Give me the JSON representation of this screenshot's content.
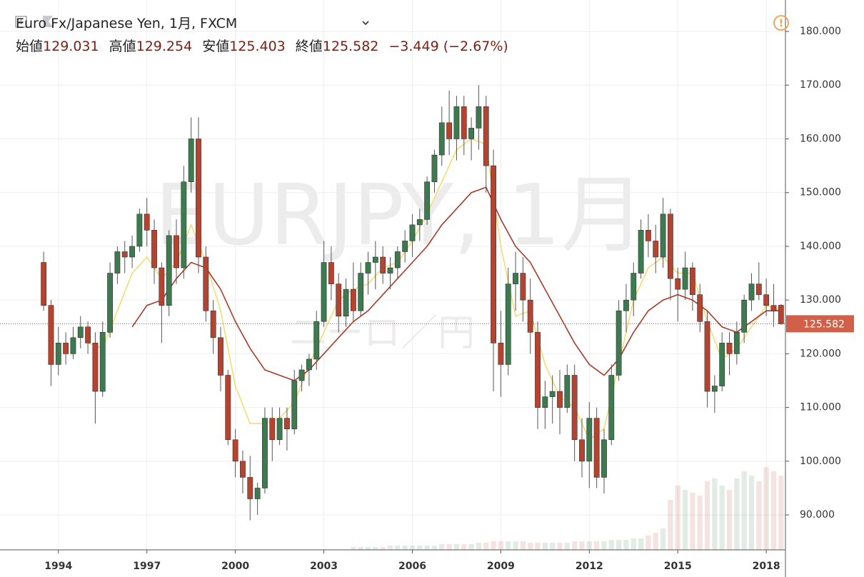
{
  "chart_data": {
    "type": "candlestick",
    "title": "Euro Fx/Japanese Yen, 1月, FXCM",
    "watermark": "EURJPY, 1月",
    "watermark_sub": "ユーロ／円",
    "ohlc_labels": [
      "始値",
      "高値",
      "安値",
      "終値"
    ],
    "change": "−3.449 (−2.67%)",
    "up_color": "#3d7a4f",
    "down_color": "#b5432f",
    "x": [
      1993.5,
      1993.75,
      1994,
      1994.25,
      1994.5,
      1994.75,
      1995,
      1995.25,
      1995.5,
      1995.75,
      1996,
      1996.25,
      1996.5,
      1996.75,
      1997,
      1997.25,
      1997.5,
      1997.75,
      1998,
      1998.25,
      1998.5,
      1998.75,
      1999,
      1999.25,
      1999.5,
      1999.75,
      2000,
      2000.25,
      2000.5,
      2000.75,
      2001,
      2001.25,
      2001.5,
      2001.75,
      2002,
      2002.25,
      2002.5,
      2002.75,
      2003,
      2003.25,
      2003.5,
      2003.75,
      2004,
      2004.25,
      2004.5,
      2004.75,
      2005,
      2005.25,
      2005.5,
      2005.75,
      2006,
      2006.25,
      2006.5,
      2006.75,
      2007,
      2007.25,
      2007.5,
      2007.75,
      2008,
      2008.25,
      2008.5,
      2008.75,
      2009,
      2009.25,
      2009.5,
      2009.75,
      2010,
      2010.25,
      2010.5,
      2010.75,
      2011,
      2011.25,
      2011.5,
      2011.75,
      2012,
      2012.25,
      2012.5,
      2012.75,
      2013,
      2013.25,
      2013.5,
      2013.75,
      2014,
      2014.25,
      2014.5,
      2014.75,
      2015,
      2015.25,
      2015.5,
      2015.75,
      2016,
      2016.25,
      2016.5,
      2016.75,
      2017,
      2017.25,
      2017.5,
      2017.75,
      2018,
      2018.25,
      2018.5
    ],
    "open": [
      137,
      129,
      118,
      122,
      120,
      123,
      125,
      122,
      113,
      124,
      135,
      139,
      138,
      140,
      146,
      143,
      136,
      129,
      142,
      136,
      152,
      160,
      138,
      128,
      123,
      116,
      104,
      100,
      97,
      93,
      95,
      108,
      104,
      108,
      106,
      115,
      117,
      119,
      126,
      137,
      133,
      127,
      132,
      128,
      135,
      137,
      138,
      135,
      136,
      139,
      141,
      144,
      145,
      152,
      157,
      163,
      160,
      166,
      160,
      162,
      166,
      155,
      122,
      118,
      133,
      135,
      130,
      124,
      110,
      112,
      113,
      110,
      116,
      104,
      100,
      108,
      97,
      104,
      116,
      128,
      130,
      135,
      143,
      141,
      138,
      146,
      134,
      132,
      136,
      131,
      126,
      113,
      114,
      122,
      120,
      124,
      130,
      133,
      131,
      129,
      129.031
    ],
    "high": [
      139,
      130,
      125,
      124,
      125,
      127,
      126,
      124,
      126,
      137,
      140,
      141,
      142,
      147,
      149,
      145,
      137,
      143,
      145,
      155,
      164,
      164,
      140,
      130,
      125,
      117,
      106,
      102,
      101,
      96,
      110,
      110,
      110,
      110,
      117,
      118,
      120,
      128,
      141,
      140,
      135,
      134,
      137,
      137,
      139,
      141,
      140,
      138,
      140,
      143,
      146,
      147,
      153,
      158,
      166,
      169,
      168,
      168,
      164,
      170,
      168,
      158,
      128,
      136,
      139,
      138,
      134,
      126,
      115,
      116,
      117,
      118,
      118,
      108,
      111,
      110,
      106,
      118,
      130,
      133,
      137,
      145,
      146,
      144,
      149,
      147,
      136,
      139,
      137,
      133,
      128,
      116,
      124,
      124,
      126,
      131,
      135,
      137,
      134,
      133,
      129.254
    ],
    "low": [
      128,
      114,
      116,
      118,
      119,
      121,
      120,
      107,
      112,
      123,
      133,
      135,
      136,
      139,
      140,
      133,
      122,
      127,
      133,
      134,
      150,
      135,
      126,
      120,
      113,
      103,
      97,
      94,
      89,
      90,
      94,
      100,
      103,
      102,
      105,
      113,
      114,
      117,
      125,
      130,
      124,
      125,
      126,
      127,
      131,
      132,
      133,
      132,
      134,
      137,
      138,
      141,
      144,
      150,
      155,
      157,
      156,
      157,
      156,
      158,
      150,
      113,
      112,
      116,
      128,
      126,
      120,
      106,
      106,
      107,
      105,
      109,
      100,
      97,
      95,
      95,
      94,
      103,
      115,
      124,
      127,
      134,
      138,
      135,
      136,
      130,
      126,
      130,
      128,
      124,
      110,
      109,
      113,
      116,
      118,
      122,
      128,
      130,
      127,
      125,
      125.403
    ],
    "close": [
      129,
      118,
      122,
      120,
      123,
      125,
      122,
      113,
      124,
      135,
      139,
      138,
      140,
      146,
      143,
      136,
      129,
      142,
      136,
      152,
      160,
      138,
      128,
      123,
      116,
      104,
      100,
      97,
      93,
      95,
      108,
      104,
      108,
      106,
      115,
      117,
      119,
      126,
      137,
      133,
      127,
      132,
      128,
      135,
      137,
      138,
      135,
      136,
      139,
      141,
      144,
      145,
      152,
      157,
      163,
      160,
      166,
      160,
      162,
      166,
      155,
      122,
      118,
      133,
      135,
      130,
      124,
      110,
      112,
      113,
      110,
      116,
      104,
      100,
      108,
      97,
      104,
      116,
      128,
      130,
      135,
      143,
      141,
      138,
      146,
      134,
      132,
      136,
      131,
      126,
      113,
      114,
      122,
      120,
      124,
      130,
      133,
      131,
      129,
      128,
      125.582
    ],
    "volume": [
      0,
      0,
      0,
      0,
      0,
      0,
      0,
      0,
      0,
      0,
      0,
      0,
      0,
      0,
      0,
      0,
      0,
      0,
      0,
      0,
      0,
      0,
      0,
      0,
      0,
      0,
      0,
      0,
      0,
      0,
      0,
      0,
      0,
      0,
      0,
      0,
      0,
      0,
      0,
      0,
      0,
      0,
      2,
      2,
      2,
      2,
      2,
      3,
      3,
      3,
      3,
      3,
      3,
      3,
      4,
      4,
      4,
      4,
      4,
      5,
      5,
      6,
      6,
      6,
      6,
      6,
      5,
      5,
      5,
      5,
      5,
      5,
      6,
      6,
      6,
      6,
      6,
      7,
      7,
      7,
      8,
      8,
      10,
      12,
      15,
      35,
      45,
      42,
      40,
      38,
      48,
      50,
      45,
      42,
      50,
      55,
      52,
      48,
      58,
      55,
      52
    ],
    "volume_lim": [
      0,
      100
    ],
    "ma_x": [
      1995,
      1995.5,
      1996,
      1996.5,
      1997,
      1997.5,
      1998,
      1998.5,
      1999,
      1999.5,
      2000,
      2000.5,
      2001,
      2001.5,
      2002,
      2002.5,
      2003,
      2003.5,
      2004,
      2004.5,
      2005,
      2005.5,
      2006,
      2006.5,
      2007,
      2007.5,
      2008,
      2008.5,
      2009,
      2009.5,
      2010,
      2010.5,
      2011,
      2011.5,
      2012,
      2012.5,
      2013,
      2013.5,
      2014,
      2014.5,
      2015,
      2015.5,
      2016,
      2016.5,
      2017,
      2017.5,
      2018,
      2018.5
    ],
    "lines": [
      {
        "color": "#f3dc72",
        "values": [
          122,
          121,
          128,
          135,
          138,
          134,
          137,
          144,
          137,
          128,
          114,
          107,
          107,
          108,
          111,
          118,
          124,
          130,
          132,
          133,
          136,
          137,
          141,
          146,
          152,
          158,
          160,
          159,
          140,
          127,
          128,
          118,
          112,
          110,
          104,
          106,
          118,
          130,
          136,
          138,
          135,
          135,
          126,
          119,
          121,
          125,
          129,
          128
        ]
      },
      {
        "color": "#a83a2a",
        "values": [
          null,
          null,
          null,
          125,
          129,
          130,
          134,
          137,
          136,
          132,
          126,
          121,
          117,
          116,
          115,
          117,
          120,
          123,
          126,
          128,
          131,
          134,
          137,
          140,
          144,
          147,
          150,
          151,
          145,
          140,
          137,
          132,
          127,
          122,
          118,
          116,
          119,
          124,
          128,
          130,
          131,
          130,
          128,
          125,
          124,
          126,
          128,
          128
        ]
      }
    ],
    "xlim": [
      1992.02,
      2018.65
    ],
    "xticks": [
      1994,
      1997,
      2000,
      2003,
      2006,
      2009,
      2012,
      2015,
      2018
    ],
    "ylim": [
      83.5,
      185.85
    ],
    "yticks": [
      {
        "value": 90,
        "label": "90.000"
      },
      {
        "value": 100,
        "label": "100.000"
      },
      {
        "value": 110,
        "label": "110.000"
      },
      {
        "value": 120,
        "label": "120.000"
      },
      {
        "value": 130,
        "label": "130.000"
      },
      {
        "value": 140,
        "label": "140.000"
      },
      {
        "value": 150,
        "label": "150.000"
      },
      {
        "value": 160,
        "label": "160.000"
      },
      {
        "value": 170,
        "label": "170.000"
      },
      {
        "value": 180,
        "label": "180.000"
      }
    ],
    "grid": true
  }
}
